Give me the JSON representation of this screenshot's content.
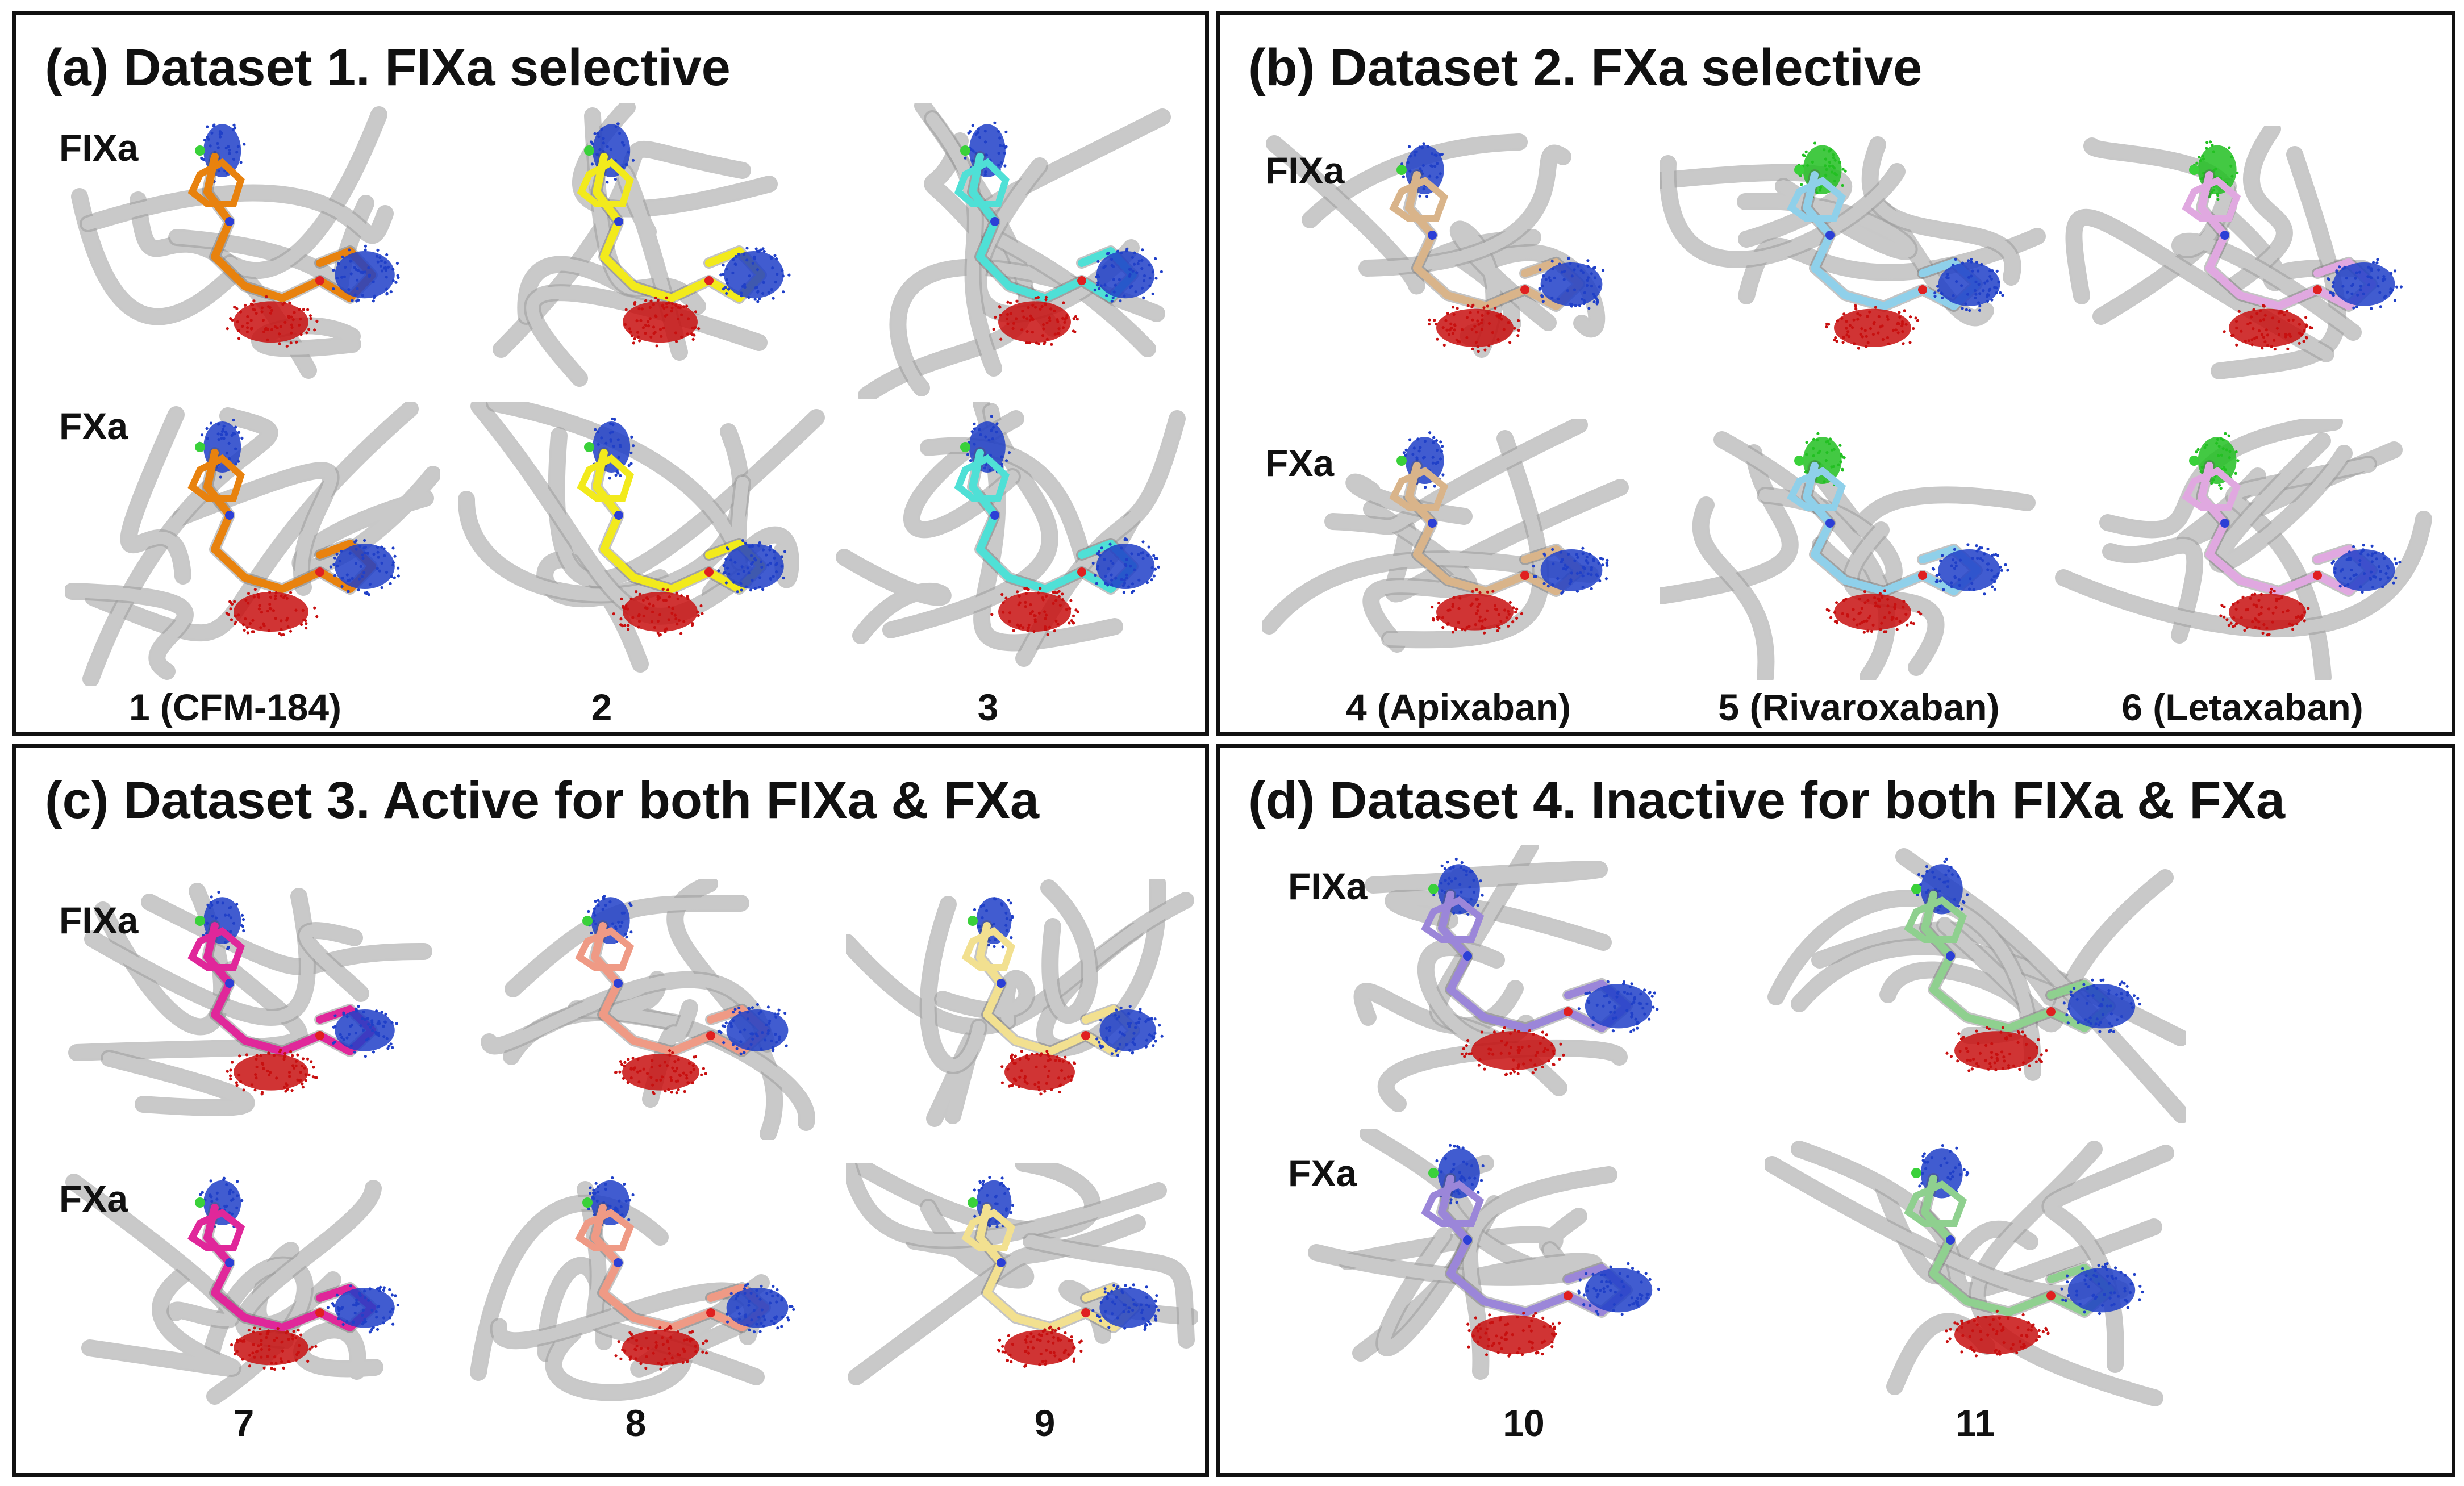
{
  "panels": [
    {
      "title": "(a) Dataset 1. FIXa selective",
      "row_top": "FIXa",
      "row_bottom": "FXa",
      "captions": [
        "1 (CFM-184)",
        "2",
        "3"
      ],
      "ligand_colors": [
        "#e8820e",
        "#f2ea1c",
        "#4fe0d6"
      ]
    },
    {
      "title": "(b) Dataset 2. FXa selective",
      "row_top": "FIXa",
      "row_bottom": "FXa",
      "captions": [
        "4 (Apixaban)",
        "5 (Rivaroxaban)",
        "6 (Letaxaban)"
      ],
      "ligand_colors": [
        "#d9b48a",
        "#8fd0ea",
        "#e0a8e0"
      ]
    },
    {
      "title": "(c) Dataset 3. Active for both FIXa & FXa",
      "row_top": "FIXa",
      "row_bottom": "FXa",
      "captions": [
        "7",
        "8",
        "9"
      ],
      "ligand_colors": [
        "#e0279a",
        "#ef9a85",
        "#f2e090"
      ]
    },
    {
      "title": "(d) Dataset 4. Inactive for both FIXa & FXa",
      "row_top": "FIXa",
      "row_bottom": "FXa",
      "captions": [
        "10",
        "11"
      ],
      "ligand_colors": [
        "#9b86d9",
        "#8fd08f"
      ]
    }
  ],
  "colors": {
    "cloud_red": "#c81010",
    "cloud_blue": "#2040c8",
    "cloud_green": "#22c022",
    "ribbon": "#c9c9c9",
    "ribbon_edge": "#9a9a9a"
  }
}
